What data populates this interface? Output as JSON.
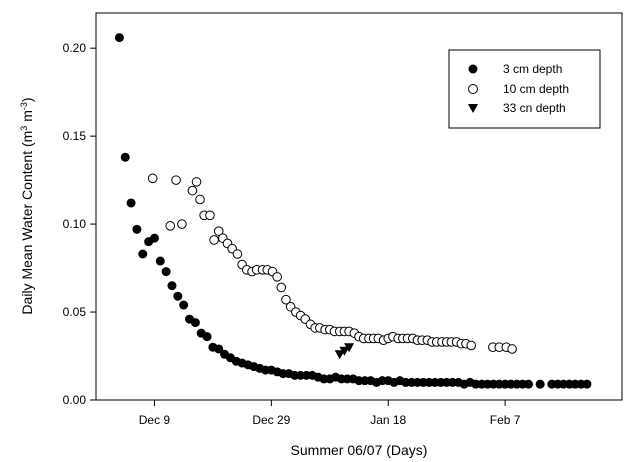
{
  "chart_data": {
    "type": "scatter",
    "xlabel": "Summer 06/07 (Days)",
    "ylabel": "Daily Mean Water Content (m",
    "ylabel_sup1": "3",
    "ylabel_mid": " m",
    "ylabel_sup2": "-3",
    "ylabel_end": ")",
    "xlim": [
      -10,
      80
    ],
    "ylim": [
      0,
      0.22
    ],
    "x_ticks": [
      {
        "label": "Dec 9",
        "value": 0
      },
      {
        "label": "Dec 29",
        "value": 20
      },
      {
        "label": "Jan 18",
        "value": 40
      },
      {
        "label": "Feb 7",
        "value": 60
      }
    ],
    "y_ticks": [
      {
        "label": "0.00",
        "value": 0.0
      },
      {
        "label": "0.05",
        "value": 0.05
      },
      {
        "label": "0.10",
        "value": 0.1
      },
      {
        "label": "0.15",
        "value": 0.15
      },
      {
        "label": "0.20",
        "value": 0.2
      }
    ],
    "legend_position": "top-right",
    "series": [
      {
        "name": "3 cm depth",
        "marker": "filled-circle",
        "points": [
          [
            -6,
            0.206
          ],
          [
            -5,
            0.138
          ],
          [
            -4,
            0.112
          ],
          [
            -3,
            0.097
          ],
          [
            -2,
            0.083
          ],
          [
            -1,
            0.09
          ],
          [
            0,
            0.092
          ],
          [
            1,
            0.079
          ],
          [
            2,
            0.073
          ],
          [
            3,
            0.065
          ],
          [
            4,
            0.059
          ],
          [
            5,
            0.054
          ],
          [
            6,
            0.046
          ],
          [
            7,
            0.044
          ],
          [
            8,
            0.038
          ],
          [
            9,
            0.036
          ],
          [
            10,
            0.03
          ],
          [
            11,
            0.029
          ],
          [
            12,
            0.026
          ],
          [
            13,
            0.024
          ],
          [
            14,
            0.022
          ],
          [
            15,
            0.021
          ],
          [
            16,
            0.02
          ],
          [
            17,
            0.019
          ],
          [
            18,
            0.018
          ],
          [
            19,
            0.017
          ],
          [
            20,
            0.017
          ],
          [
            21,
            0.016
          ],
          [
            22,
            0.015
          ],
          [
            23,
            0.015
          ],
          [
            24,
            0.014
          ],
          [
            25,
            0.014
          ],
          [
            26,
            0.014
          ],
          [
            27,
            0.014
          ],
          [
            28,
            0.013
          ],
          [
            29,
            0.012
          ],
          [
            30,
            0.012
          ],
          [
            31,
            0.013
          ],
          [
            32,
            0.012
          ],
          [
            33,
            0.012
          ],
          [
            34,
            0.012
          ],
          [
            35,
            0.011
          ],
          [
            36,
            0.011
          ],
          [
            37,
            0.011
          ],
          [
            38,
            0.01
          ],
          [
            39,
            0.011
          ],
          [
            40,
            0.011
          ],
          [
            41,
            0.01
          ],
          [
            42,
            0.011
          ],
          [
            43,
            0.01
          ],
          [
            44,
            0.01
          ],
          [
            45,
            0.01
          ],
          [
            46,
            0.01
          ],
          [
            47,
            0.01
          ],
          [
            48,
            0.01
          ],
          [
            49,
            0.01
          ],
          [
            50,
            0.01
          ],
          [
            51,
            0.01
          ],
          [
            52,
            0.01
          ],
          [
            53,
            0.009
          ],
          [
            54,
            0.01
          ],
          [
            55,
            0.009
          ],
          [
            56,
            0.009
          ],
          [
            57,
            0.009
          ],
          [
            58,
            0.009
          ],
          [
            59,
            0.009
          ],
          [
            60,
            0.009
          ],
          [
            61,
            0.009
          ],
          [
            62,
            0.009
          ],
          [
            63,
            0.009
          ],
          [
            64,
            0.009
          ],
          [
            66,
            0.009
          ],
          [
            68,
            0.009
          ],
          [
            69,
            0.009
          ],
          [
            70,
            0.009
          ],
          [
            71,
            0.009
          ],
          [
            72,
            0.009
          ],
          [
            73,
            0.009
          ],
          [
            74,
            0.009
          ]
        ]
      },
      {
        "name": "10 cm depth",
        "marker": "open-circle",
        "points": [
          [
            -0.3,
            0.126
          ],
          [
            2.7,
            0.099
          ],
          [
            3.7,
            0.125
          ],
          [
            4.7,
            0.1
          ],
          [
            6.5,
            0.119
          ],
          [
            7.2,
            0.124
          ],
          [
            7.8,
            0.114
          ],
          [
            8.5,
            0.105
          ],
          [
            9.5,
            0.105
          ],
          [
            10.2,
            0.091
          ],
          [
            11,
            0.096
          ],
          [
            11.7,
            0.092
          ],
          [
            12.5,
            0.089
          ],
          [
            13.3,
            0.086
          ],
          [
            14.2,
            0.083
          ],
          [
            15,
            0.077
          ],
          [
            15.8,
            0.074
          ],
          [
            16.7,
            0.073
          ],
          [
            17.5,
            0.074
          ],
          [
            18.5,
            0.074
          ],
          [
            19.3,
            0.074
          ],
          [
            20.2,
            0.073
          ],
          [
            21,
            0.07
          ],
          [
            21.7,
            0.064
          ],
          [
            22.5,
            0.057
          ],
          [
            23.3,
            0.053
          ],
          [
            24.2,
            0.05
          ],
          [
            25,
            0.048
          ],
          [
            25.8,
            0.046
          ],
          [
            26.7,
            0.043
          ],
          [
            27.5,
            0.041
          ],
          [
            28.3,
            0.041
          ],
          [
            29.2,
            0.04
          ],
          [
            30,
            0.04
          ],
          [
            30.8,
            0.039
          ],
          [
            31.7,
            0.039
          ],
          [
            32.5,
            0.039
          ],
          [
            33.3,
            0.039
          ],
          [
            34.2,
            0.038
          ],
          [
            35,
            0.036
          ],
          [
            35.8,
            0.035
          ],
          [
            36.7,
            0.035
          ],
          [
            37.5,
            0.035
          ],
          [
            38.3,
            0.035
          ],
          [
            39.2,
            0.034
          ],
          [
            40,
            0.035
          ],
          [
            40.8,
            0.036
          ],
          [
            41.7,
            0.035
          ],
          [
            42.5,
            0.035
          ],
          [
            43.3,
            0.035
          ],
          [
            44.2,
            0.035
          ],
          [
            45,
            0.034
          ],
          [
            45.8,
            0.034
          ],
          [
            46.7,
            0.034
          ],
          [
            47.5,
            0.033
          ],
          [
            48.3,
            0.033
          ],
          [
            49.2,
            0.033
          ],
          [
            50,
            0.033
          ],
          [
            50.8,
            0.033
          ],
          [
            51.7,
            0.033
          ],
          [
            52.5,
            0.032
          ],
          [
            53.3,
            0.032
          ],
          [
            54.2,
            0.031
          ],
          [
            57.9,
            0.03
          ],
          [
            59,
            0.03
          ],
          [
            60.2,
            0.03
          ],
          [
            61.2,
            0.029
          ]
        ]
      },
      {
        "name": "33 cn depth",
        "marker": "filled-triangle-down",
        "points": [
          [
            31.7,
            0.026
          ],
          [
            32.5,
            0.028
          ],
          [
            33.3,
            0.03
          ]
        ]
      }
    ]
  }
}
